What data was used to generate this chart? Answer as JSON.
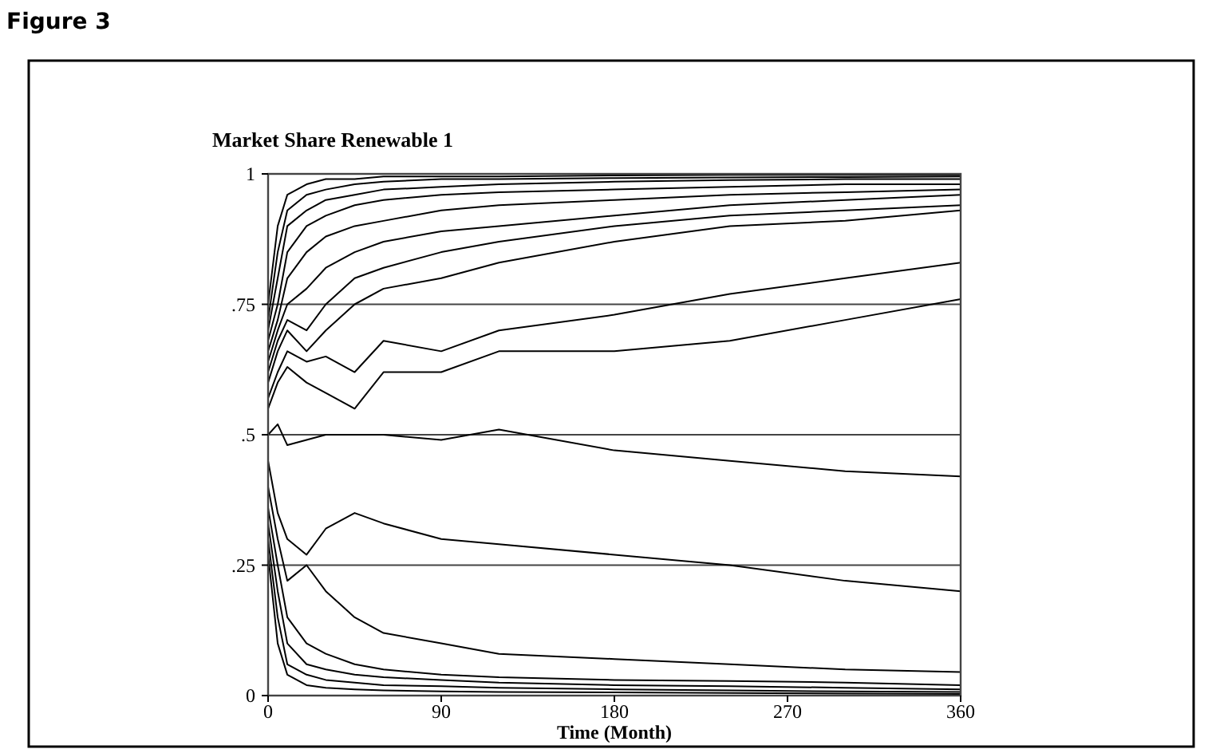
{
  "chart_data": {
    "type": "line",
    "title": "Market Share Renewable 1",
    "xlabel": "Time (Month)",
    "annotations": [
      "Figure 3"
    ],
    "x": [
      0,
      5,
      10,
      20,
      30,
      45,
      60,
      90,
      120,
      180,
      240,
      300,
      360
    ],
    "xlim": [
      0,
      360
    ],
    "xticks": [
      0,
      90,
      180,
      270,
      360
    ],
    "ylim": [
      0,
      1
    ],
    "yticks": [
      0,
      {
        "value": 0.25,
        "label": ".25"
      },
      {
        "value": 0.5,
        "label": ".5"
      },
      {
        "value": 0.75,
        "label": ".75"
      },
      1
    ],
    "grid": "y",
    "marker": "none",
    "line_style": "solid",
    "series": [
      {
        "color": "#000000",
        "values": [
          0.75,
          0.9,
          0.96,
          0.98,
          0.99,
          0.99,
          0.995,
          0.995,
          0.995,
          0.997,
          0.998,
          0.998,
          0.998
        ]
      },
      {
        "color": "#000000",
        "values": [
          0.72,
          0.85,
          0.93,
          0.96,
          0.97,
          0.98,
          0.985,
          0.99,
          0.99,
          0.992,
          0.993,
          0.994,
          0.995
        ]
      },
      {
        "color": "#000000",
        "values": [
          0.7,
          0.8,
          0.9,
          0.93,
          0.95,
          0.96,
          0.97,
          0.975,
          0.98,
          0.985,
          0.988,
          0.99,
          0.99
        ]
      },
      {
        "color": "#000000",
        "values": [
          0.68,
          0.75,
          0.85,
          0.9,
          0.92,
          0.94,
          0.95,
          0.96,
          0.965,
          0.97,
          0.975,
          0.98,
          0.98
        ]
      },
      {
        "color": "#000000",
        "values": [
          0.66,
          0.72,
          0.8,
          0.85,
          0.88,
          0.9,
          0.91,
          0.93,
          0.94,
          0.95,
          0.96,
          0.965,
          0.97
        ]
      },
      {
        "color": "#000000",
        "values": [
          0.64,
          0.7,
          0.75,
          0.78,
          0.82,
          0.85,
          0.87,
          0.89,
          0.9,
          0.92,
          0.94,
          0.95,
          0.96
        ]
      },
      {
        "color": "#000000",
        "values": [
          0.62,
          0.68,
          0.72,
          0.7,
          0.75,
          0.8,
          0.82,
          0.85,
          0.87,
          0.9,
          0.92,
          0.93,
          0.94
        ]
      },
      {
        "color": "#000000",
        "values": [
          0.6,
          0.66,
          0.7,
          0.66,
          0.7,
          0.75,
          0.78,
          0.8,
          0.83,
          0.87,
          0.9,
          0.91,
          0.93
        ]
      },
      {
        "color": "#000000",
        "values": [
          0.57,
          0.62,
          0.66,
          0.64,
          0.65,
          0.62,
          0.68,
          0.66,
          0.7,
          0.73,
          0.77,
          0.8,
          0.83
        ]
      },
      {
        "color": "#000000",
        "values": [
          0.55,
          0.6,
          0.63,
          0.6,
          0.58,
          0.55,
          0.62,
          0.62,
          0.66,
          0.66,
          0.68,
          0.72,
          0.76
        ]
      },
      {
        "color": "#000000",
        "values": [
          0.5,
          0.52,
          0.48,
          0.49,
          0.5,
          0.5,
          0.5,
          0.49,
          0.51,
          0.47,
          0.45,
          0.43,
          0.42
        ]
      },
      {
        "color": "#000000",
        "values": [
          0.45,
          0.35,
          0.3,
          0.27,
          0.32,
          0.35,
          0.33,
          0.3,
          0.29,
          0.27,
          0.25,
          0.22,
          0.2
        ]
      },
      {
        "color": "#000000",
        "values": [
          0.4,
          0.3,
          0.22,
          0.25,
          0.2,
          0.15,
          0.12,
          0.1,
          0.08,
          0.07,
          0.06,
          0.05,
          0.045
        ]
      },
      {
        "color": "#000000",
        "values": [
          0.36,
          0.25,
          0.15,
          0.1,
          0.08,
          0.06,
          0.05,
          0.04,
          0.035,
          0.03,
          0.028,
          0.025,
          0.02
        ]
      },
      {
        "color": "#000000",
        "values": [
          0.33,
          0.2,
          0.1,
          0.06,
          0.05,
          0.04,
          0.035,
          0.03,
          0.025,
          0.02,
          0.018,
          0.015,
          0.012
        ]
      },
      {
        "color": "#000000",
        "values": [
          0.3,
          0.15,
          0.06,
          0.04,
          0.03,
          0.025,
          0.02,
          0.018,
          0.015,
          0.012,
          0.01,
          0.008,
          0.007
        ]
      },
      {
        "color": "#000000",
        "values": [
          0.27,
          0.1,
          0.04,
          0.02,
          0.015,
          0.012,
          0.01,
          0.008,
          0.007,
          0.006,
          0.005,
          0.004,
          0.003
        ]
      }
    ]
  }
}
